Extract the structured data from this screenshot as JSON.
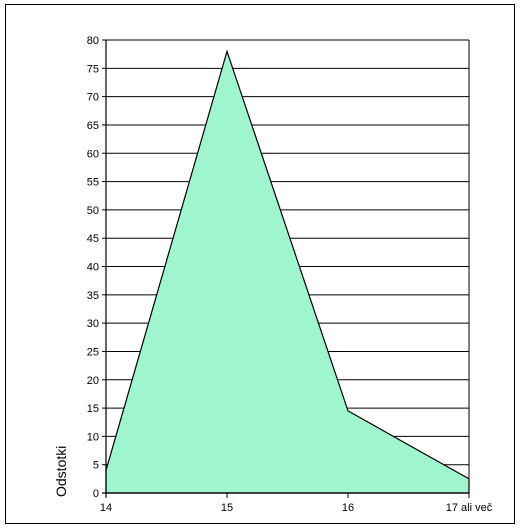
{
  "chart_data": {
    "type": "area",
    "categories": [
      "14",
      "15",
      "16",
      "17 ali več"
    ],
    "values": [
      4,
      78,
      14.5,
      2.5
    ],
    "ylabel": "Odstotki",
    "xlabel": "",
    "ylim": [
      0,
      80
    ],
    "yticks": [
      0,
      5,
      10,
      15,
      20,
      25,
      30,
      35,
      40,
      45,
      50,
      55,
      60,
      65,
      70,
      75,
      80
    ],
    "grid": "horizontal",
    "legend": "none",
    "colors": {
      "fill": "#9ff5cd",
      "line": "#000000",
      "grid": "#000000",
      "background": "#ffffff"
    }
  }
}
